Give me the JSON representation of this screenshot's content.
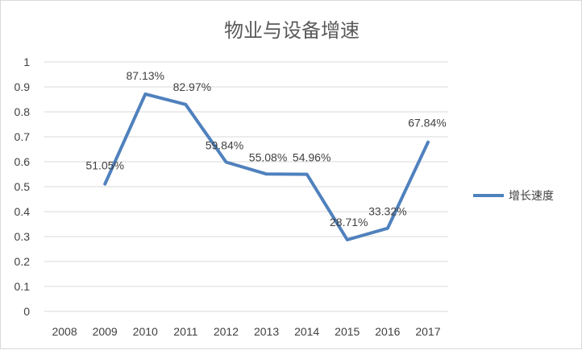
{
  "chart_data": {
    "type": "line",
    "title": "物业与设备增速",
    "categories": [
      "2008",
      "2009",
      "2010",
      "2011",
      "2012",
      "2013",
      "2014",
      "2015",
      "2016",
      "2017"
    ],
    "series": [
      {
        "name": "增长速度",
        "values": [
          null,
          0.5105,
          0.8713,
          0.8297,
          0.5984,
          0.5508,
          0.5496,
          0.2871,
          0.3332,
          0.6784
        ],
        "data_labels": [
          "",
          "51.05%",
          "87.13%",
          "82.97%",
          "59.84%",
          "55.08%",
          "54.96%",
          "28.71%",
          "33.32%",
          "67.84%"
        ],
        "color": "#4f81bd"
      }
    ],
    "ylim": [
      0,
      1
    ],
    "yticks": [
      "0",
      "0.1",
      "0.2",
      "0.3",
      "0.4",
      "0.5",
      "0.6",
      "0.7",
      "0.8",
      "0.9",
      "1"
    ],
    "grid": true,
    "legend_position": "right"
  }
}
